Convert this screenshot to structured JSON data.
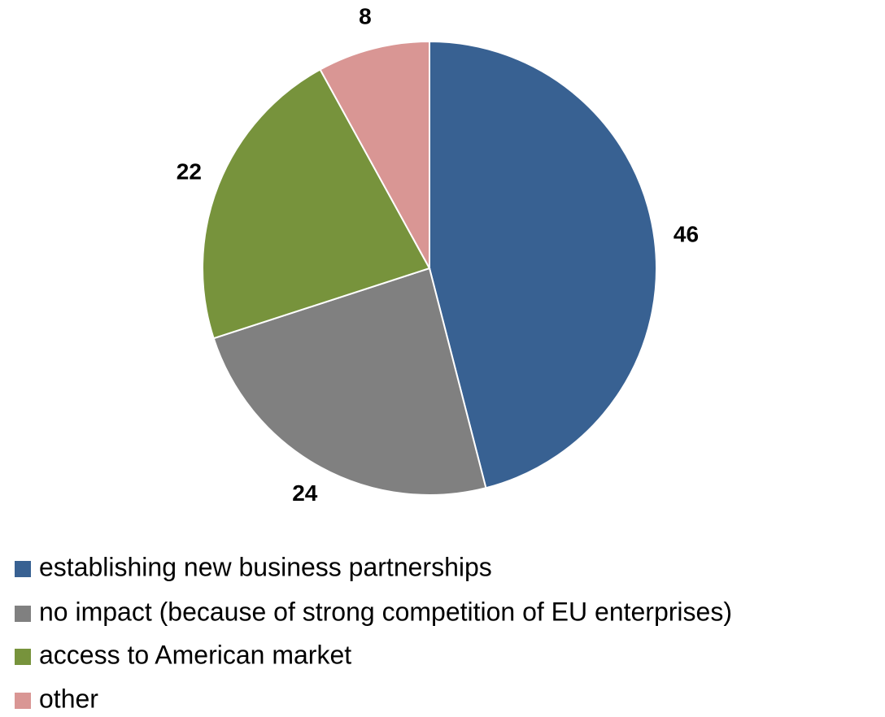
{
  "chart_data": {
    "type": "pie",
    "categories": [
      "establishing new business partnerships",
      "no impact (because of strong competition of EU enterprises)",
      "access to American market",
      "other"
    ],
    "values": [
      46,
      24,
      22,
      8
    ],
    "colors": [
      "#386192",
      "#808080",
      "#77933c",
      "#d99694"
    ]
  }
}
